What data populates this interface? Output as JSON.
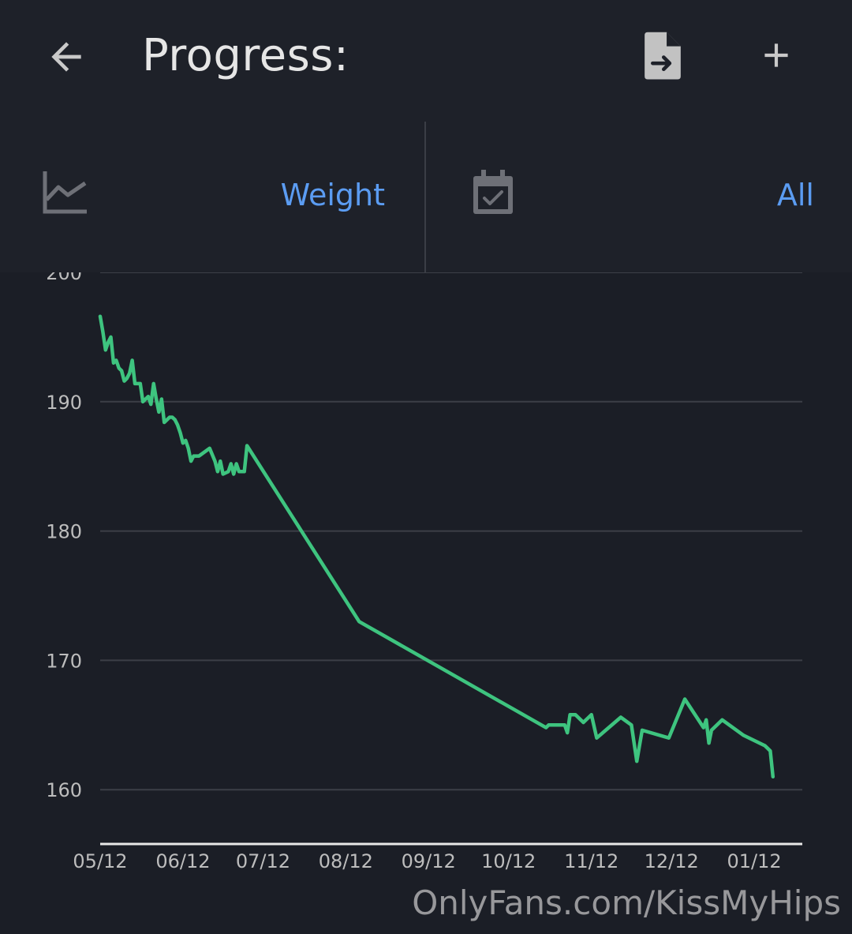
{
  "appbar": {
    "title": "Progress:",
    "back_icon": "arrow-left-icon",
    "export_icon": "file-export-icon",
    "add_icon": "plus-icon"
  },
  "filters": {
    "metric": {
      "icon": "line-chart-icon",
      "value": "Weight"
    },
    "range": {
      "icon": "calendar-check-icon",
      "value": "All"
    }
  },
  "colors": {
    "background": "#1b1e26",
    "accent": "#5b9cf2",
    "line": "#3ec47f",
    "grid": "#3c3f47"
  },
  "chart_data": {
    "type": "line",
    "title": "",
    "xlabel": "",
    "ylabel": "",
    "ylim": [
      155.8,
      200
    ],
    "xlim": [
      "2023-05-12",
      "2024-01-30"
    ],
    "y_ticks": [
      160,
      170,
      180,
      190,
      200
    ],
    "x_ticks": [
      "05/12",
      "06/12",
      "07/12",
      "08/12",
      "09/12",
      "10/12",
      "11/12",
      "12/12",
      "01/12"
    ],
    "x_tick_dates": [
      "2023-05-12",
      "2023-06-12",
      "2023-07-12",
      "2023-08-12",
      "2023-09-12",
      "2023-10-12",
      "2023-11-12",
      "2023-12-12",
      "2024-01-12"
    ],
    "grid": true,
    "series": [
      {
        "points": [
          [
            "2023-05-12",
            196.6
          ],
          [
            "2023-05-13",
            195.4
          ],
          [
            "2023-05-14",
            194.0
          ],
          [
            "2023-05-15",
            194.6
          ],
          [
            "2023-05-16",
            195.0
          ],
          [
            "2023-05-17",
            193.0
          ],
          [
            "2023-05-18",
            193.2
          ],
          [
            "2023-05-19",
            192.6
          ],
          [
            "2023-05-20",
            192.4
          ],
          [
            "2023-05-21",
            191.6
          ],
          [
            "2023-05-22",
            191.8
          ],
          [
            "2023-05-23",
            192.2
          ],
          [
            "2023-05-24",
            193.2
          ],
          [
            "2023-05-25",
            191.4
          ],
          [
            "2023-05-27",
            191.4
          ],
          [
            "2023-05-28",
            190.0
          ],
          [
            "2023-05-29",
            190.2
          ],
          [
            "2023-05-30",
            190.4
          ],
          [
            "2023-05-31",
            189.8
          ],
          [
            "2023-06-01",
            191.4
          ],
          [
            "2023-06-02",
            190.2
          ],
          [
            "2023-06-03",
            189.2
          ],
          [
            "2023-06-04",
            190.2
          ],
          [
            "2023-06-05",
            188.4
          ],
          [
            "2023-06-06",
            188.6
          ],
          [
            "2023-06-07",
            188.8
          ],
          [
            "2023-06-08",
            188.8
          ],
          [
            "2023-06-09",
            188.6
          ],
          [
            "2023-06-10",
            188.2
          ],
          [
            "2023-06-11",
            187.6
          ],
          [
            "2023-06-12",
            186.8
          ],
          [
            "2023-06-13",
            187.0
          ],
          [
            "2023-06-14",
            186.4
          ],
          [
            "2023-06-15",
            185.4
          ],
          [
            "2023-06-16",
            185.8
          ],
          [
            "2023-06-18",
            185.8
          ],
          [
            "2023-06-22",
            186.4
          ],
          [
            "2023-06-24",
            185.4
          ],
          [
            "2023-06-25",
            184.6
          ],
          [
            "2023-06-26",
            185.4
          ],
          [
            "2023-06-27",
            184.4
          ],
          [
            "2023-06-29",
            184.6
          ],
          [
            "2023-06-30",
            185.2
          ],
          [
            "2023-07-01",
            184.4
          ],
          [
            "2023-07-02",
            185.2
          ],
          [
            "2023-07-03",
            184.6
          ],
          [
            "2023-07-05",
            184.6
          ],
          [
            "2023-07-06",
            186.6
          ],
          [
            "2023-08-17",
            173.0
          ],
          [
            "2023-10-26",
            164.8
          ],
          [
            "2023-10-27",
            165.0
          ],
          [
            "2023-11-02",
            165.0
          ],
          [
            "2023-11-03",
            164.4
          ],
          [
            "2023-11-04",
            165.8
          ],
          [
            "2023-11-06",
            165.8
          ],
          [
            "2023-11-09",
            165.2
          ],
          [
            "2023-11-12",
            165.8
          ],
          [
            "2023-11-14",
            164.0
          ],
          [
            "2023-11-23",
            165.6
          ],
          [
            "2023-11-27",
            165.0
          ],
          [
            "2023-11-29",
            162.2
          ],
          [
            "2023-12-01",
            164.6
          ],
          [
            "2023-12-11",
            164.0
          ],
          [
            "2023-12-17",
            167.0
          ],
          [
            "2023-12-24",
            164.8
          ],
          [
            "2023-12-25",
            165.4
          ],
          [
            "2023-12-26",
            163.6
          ],
          [
            "2023-12-27",
            164.6
          ],
          [
            "2023-12-31",
            165.4
          ],
          [
            "2024-01-08",
            164.2
          ],
          [
            "2024-01-16",
            163.4
          ],
          [
            "2024-01-17",
            163.2
          ],
          [
            "2024-01-18",
            163.0
          ],
          [
            "2024-01-19",
            161.0
          ]
        ]
      }
    ]
  },
  "watermark": "OnlyFans.com/KissMyHips"
}
